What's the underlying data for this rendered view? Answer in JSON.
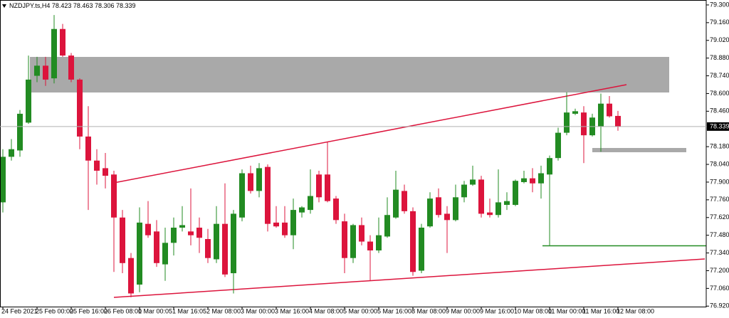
{
  "chart_data": {
    "type": "candlestick",
    "title": "NZDJPY.ts,H4",
    "categories": [
      "24 Feb 2021",
      null,
      null,
      null,
      "25 Feb 00:00",
      null,
      null,
      null,
      "25 Feb 16:00",
      null,
      null,
      null,
      "26 Feb 08:00",
      null,
      null,
      null,
      "1 Mar 00:05",
      null,
      null,
      null,
      "1 Mar 16:05",
      null,
      null,
      null,
      "2 Mar 08:00",
      null,
      null,
      null,
      "3 Mar 00:00",
      null,
      null,
      null,
      "3 Mar 16:00",
      null,
      null,
      null,
      "4 Mar 08:00",
      null,
      null,
      null,
      "5 Mar 00:00",
      null,
      null,
      null,
      "5 Mar 16:00",
      null,
      null,
      null,
      "8 Mar 08:00",
      null,
      null,
      null,
      "9 Mar 00:00",
      null,
      null,
      null,
      "9 Mar 16:00",
      null,
      null,
      null,
      "10 Mar 08:00",
      null,
      null,
      null,
      "11 Mar 00:00",
      null,
      null,
      null,
      "11 Mar 16:00",
      null,
      null,
      null,
      "12 Mar 08:00"
    ],
    "open": [
      77.74,
      78.1,
      78.15,
      78.37,
      78.74,
      78.82,
      78.72,
      79.11,
      78.9,
      78.71,
      78.26,
      78.07,
      78.01,
      77.96,
      77.62,
      77.3,
      77.09,
      77.57,
      77.51,
      77.25,
      77.42,
      77.54,
      77.51,
      77.54,
      77.45,
      77.29,
      77.57,
      77.18,
      77.62,
      77.97,
      77.83,
      78.02,
      77.58,
      77.58,
      77.48,
      77.66,
      77.68,
      77.96,
      77.96,
      77.77,
      77.59,
      77.3,
      77.56,
      77.43,
      77.36,
      77.47,
      77.62,
      77.83,
      77.67,
      77.2,
      77.55,
      77.78,
      77.65,
      77.6,
      77.78,
      77.88,
      77.92,
      77.66,
      77.64,
      77.72,
      77.72,
      77.9,
      77.93,
      77.89,
      77.96,
      78.09,
      78.29,
      78.44,
      78.45,
      78.27,
      78.34,
      78.52,
      78.423
    ],
    "high": [
      78.16,
      78.24,
      78.47,
      78.9,
      78.89,
      78.89,
      79.22,
      79.15,
      78.92,
      78.72,
      78.5,
      78.16,
      78.13,
      77.99,
      77.68,
      77.34,
      77.7,
      77.75,
      77.6,
      77.54,
      77.62,
      77.71,
      77.85,
      77.62,
      77.53,
      77.71,
      77.89,
      77.68,
      78.0,
      78.03,
      78.05,
      78.04,
      77.71,
      77.71,
      77.77,
      77.71,
      78.0,
      77.99,
      78.22,
      77.79,
      77.65,
      77.57,
      77.62,
      77.48,
      77.62,
      77.78,
      77.99,
      77.88,
      77.7,
      77.57,
      77.82,
      77.85,
      77.71,
      77.88,
      77.91,
      78.03,
      77.95,
      77.77,
      78.0,
      77.82,
      77.92,
      77.99,
      78.01,
      78.03,
      78.11,
      78.33,
      78.61,
      78.48,
      78.5,
      78.44,
      78.6,
      78.58,
      78.463
    ],
    "low": [
      77.66,
      78.07,
      78.1,
      78.36,
      78.69,
      78.66,
      78.68,
      78.89,
      78.69,
      78.16,
      77.68,
      77.88,
      77.85,
      77.19,
      77.18,
      76.99,
      77.03,
      77.46,
      77.23,
      77.12,
      77.32,
      77.51,
      77.4,
      77.34,
      77.26,
      77.26,
      77.15,
      77.02,
      77.59,
      77.81,
      77.78,
      77.51,
      77.54,
      77.46,
      77.37,
      77.62,
      77.65,
      77.74,
      77.74,
      77.57,
      77.18,
      77.26,
      77.4,
      77.12,
      77.34,
      77.46,
      77.61,
      77.65,
      77.16,
      77.18,
      77.54,
      77.62,
      77.34,
      77.59,
      77.74,
      77.87,
      77.62,
      77.62,
      77.62,
      77.68,
      77.71,
      77.89,
      77.82,
      77.77,
      77.4,
      78.07,
      78.27,
      78.43,
      78.05,
      78.26,
      78.14,
      78.41,
      78.306
    ],
    "close": [
      78.1,
      78.16,
      78.44,
      78.71,
      78.82,
      78.71,
      79.11,
      78.9,
      78.71,
      78.26,
      78.07,
      77.99,
      77.95,
      77.62,
      77.26,
      77.02,
      77.58,
      77.48,
      77.26,
      77.42,
      77.54,
      77.56,
      77.48,
      77.46,
      77.3,
      77.57,
      77.17,
      77.65,
      77.97,
      77.83,
      78.01,
      77.57,
      77.55,
      77.48,
      77.68,
      77.7,
      77.79,
      77.78,
      77.75,
      77.6,
      77.3,
      77.56,
      77.43,
      77.36,
      77.48,
      77.64,
      77.84,
      77.67,
      77.19,
      77.54,
      77.77,
      77.64,
      77.6,
      77.78,
      77.88,
      77.92,
      77.65,
      77.64,
      77.74,
      77.75,
      77.91,
      77.93,
      77.89,
      77.97,
      78.09,
      78.29,
      78.45,
      78.46,
      78.27,
      78.41,
      78.52,
      78.42,
      78.339
    ],
    "up_color": "#228b22",
    "down_color": "#dc143c",
    "ylim": [
      76.916,
      79.339
    ],
    "yticks": [
      {
        "value": 79.3,
        "label": "79.300"
      },
      {
        "value": 79.16,
        "label": "79.160"
      },
      {
        "value": 79.02,
        "label": "79.020"
      },
      {
        "value": 78.88,
        "label": "78.880"
      },
      {
        "value": 78.74,
        "label": "78.740"
      },
      {
        "value": 78.6,
        "label": "78.600"
      },
      {
        "value": 78.46,
        "label": "78.460"
      },
      {
        "value": 78.18,
        "label": "78.180"
      },
      {
        "value": 78.04,
        "label": "78.040"
      },
      {
        "value": 77.9,
        "label": "77.900"
      },
      {
        "value": 77.76,
        "label": "77.760"
      },
      {
        "value": 77.62,
        "label": "77.620"
      },
      {
        "value": 77.48,
        "label": "77.480"
      },
      {
        "value": 77.34,
        "label": "77.340"
      },
      {
        "value": 77.2,
        "label": "77.200"
      },
      {
        "value": 77.06,
        "label": "77.060"
      },
      {
        "value": 76.92,
        "label": "76.920"
      }
    ]
  }
}
